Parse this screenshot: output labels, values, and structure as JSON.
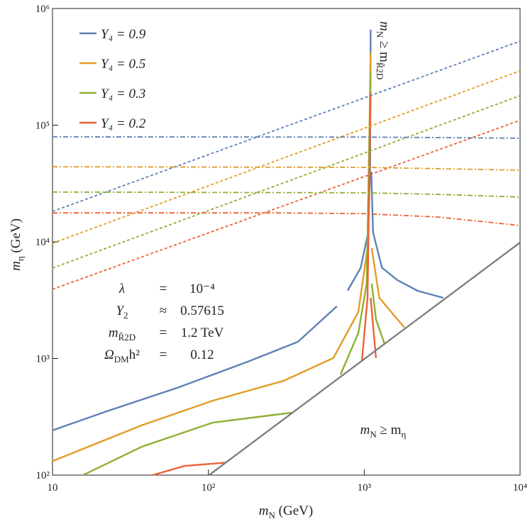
{
  "chart_data": {
    "type": "line",
    "xlabel": [
      "m",
      "N",
      " (GeV)"
    ],
    "ylabel": [
      "m",
      "η",
      " (GeV)"
    ],
    "xscale": "log",
    "yscale": "log",
    "xlim": [
      10,
      10000
    ],
    "ylim": [
      100,
      1000000
    ],
    "xticks": [
      10,
      {
        "value": 100,
        "label": "10²"
      },
      {
        "value": 1000,
        "label": "10³"
      },
      {
        "value": 10000,
        "label": "10⁴"
      }
    ],
    "yticks": [
      {
        "value": 100,
        "label": "10²"
      },
      {
        "value": 1000,
        "label": "10³"
      },
      {
        "value": 10000,
        "label": "10⁴"
      },
      {
        "value": 100000,
        "label": "10⁵"
      },
      {
        "value": 1000000,
        "label": "10⁶"
      }
    ],
    "legend": "upper left",
    "series": [
      {
        "name": "Y₄ = 0.9",
        "color": "#5e81b5",
        "dash": "solid",
        "x": [
          10,
          22.2,
          63.2,
          180,
          376,
          668,
          null,
          783,
          950,
          1060,
          1090,
          1100,
          null,
          1110,
          1140,
          1300,
          1630,
          2200,
          3220
        ],
        "y": [
          242,
          352,
          560,
          940,
          1390,
          2800,
          null,
          3810,
          6000,
          12000,
          40000,
          660000,
          null,
          40000,
          12000,
          6000,
          4700,
          3800,
          3310
        ]
      },
      {
        "name": "Y₄ = 0.5",
        "color": "#e19c24",
        "dash": "solid",
        "x": [
          10,
          37.4,
          107,
          305,
          634,
          916,
          1050,
          1100,
          null,
          1117,
          1250,
          1810
        ],
        "y": [
          132,
          267,
          435,
          644,
          1010,
          2500,
          8800,
          420000,
          null,
          8800,
          3310,
          1840
        ]
      },
      {
        "name": "Y₄ = 0.3",
        "color": "#8fb032",
        "dash": "solid",
        "x": [
          15.7,
          37.4,
          107,
          345,
          null,
          705,
          916,
          1037,
          1100,
          null,
          1117,
          1190,
          1350
        ],
        "y": [
          100,
          175,
          282,
          343,
          null,
          730,
          1645,
          4380,
          290000,
          null,
          4380,
          2170,
          1333
        ]
      },
      {
        "name": "Y₄ = 0.2",
        "color": "#eb6235",
        "dash": "solid",
        "x": [
          43.9,
          70.3,
          129,
          null,
          966,
          1050,
          1100,
          null,
          1100,
          1190
        ],
        "y": [
          100,
          120,
          128,
          null,
          940,
          3310,
          192000,
          null,
          3310,
          1010
        ]
      },
      {
        "color": "#5e81b5",
        "dash": "dashed",
        "x": [
          10,
          10000
        ],
        "y": [
          18200,
          525000
        ]
      },
      {
        "color": "#e19c24",
        "dash": "dashed",
        "x": [
          10,
          10000
        ],
        "y": [
          9720,
          292000
        ]
      },
      {
        "color": "#8fb032",
        "dash": "dashed",
        "x": [
          10,
          10000
        ],
        "y": [
          5960,
          179000
        ]
      },
      {
        "color": "#eb6235",
        "dash": "dashed",
        "x": [
          10,
          10000
        ],
        "y": [
          3920,
          110000
        ]
      },
      {
        "color": "#5e81b5",
        "dash": "dashdot",
        "x": [
          10,
          1000,
          10000
        ],
        "y": [
          79400,
          79000,
          77300
        ]
      },
      {
        "color": "#e19c24",
        "dash": "dashdot",
        "x": [
          10,
          1000,
          10000
        ],
        "y": [
          44000,
          43500,
          41100
        ]
      },
      {
        "color": "#8fb032",
        "dash": "dashdot",
        "x": [
          10,
          1000,
          3000,
          10000
        ],
        "y": [
          26700,
          26300,
          25500,
          24200
        ]
      },
      {
        "color": "#eb6235",
        "dash": "dashdot",
        "x": [
          10,
          300,
          1000,
          3000,
          10000
        ],
        "y": [
          17700,
          17700,
          17400,
          16300,
          13800
        ]
      },
      {
        "color": "#808080",
        "dash": "solid",
        "x": [
          101,
          10000
        ],
        "y": [
          100,
          9860
        ]
      }
    ],
    "parameters": [
      {
        "left": [
          "λ"
        ],
        "op": "=",
        "right": "10⁻⁴"
      },
      {
        "left": [
          "Y",
          "2"
        ],
        "op": "≈",
        "right": "0.57615"
      },
      {
        "left": [
          "m",
          "R̃2D"
        ],
        "op": "=",
        "right": "1.2 TeV"
      },
      {
        "left": [
          "Ω",
          "DM",
          "h²"
        ],
        "op": "=",
        "right": "0.12"
      }
    ],
    "annotation_region": [
      "m",
      "N",
      " ≥ m",
      "η"
    ],
    "annotation_vertical": [
      "m",
      "N",
      " ≥ m",
      "R̃2D"
    ]
  }
}
